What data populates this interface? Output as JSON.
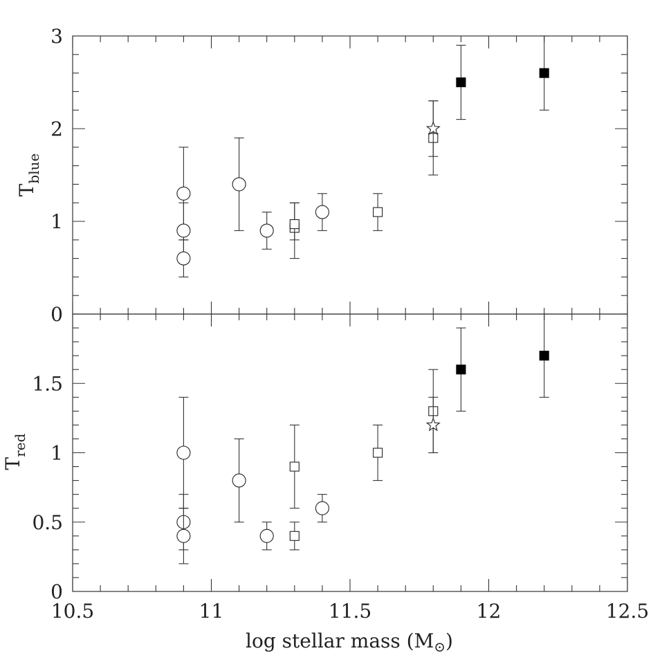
{
  "chart_data": [
    {
      "type": "scatter",
      "panel": "top",
      "ylabel_main": "T",
      "ylabel_sub": "blue",
      "ylim": [
        0,
        3
      ],
      "yticks": [
        "0",
        "1",
        "2",
        "3"
      ],
      "xlim": [
        10.5,
        12.5
      ],
      "series": [
        {
          "marker": "open-circle",
          "points": [
            {
              "x": 10.9,
              "y": 1.3,
              "lo": 0.8,
              "hi": 1.8
            },
            {
              "x": 10.9,
              "y": 0.9,
              "lo": 0.6,
              "hi": 1.2
            },
            {
              "x": 10.9,
              "y": 0.6,
              "lo": 0.4,
              "hi": 0.8
            },
            {
              "x": 11.1,
              "y": 1.4,
              "lo": 0.9,
              "hi": 1.9
            },
            {
              "x": 11.2,
              "y": 0.9,
              "lo": 0.7,
              "hi": 1.1
            },
            {
              "x": 11.4,
              "y": 1.1,
              "lo": 0.9,
              "hi": 1.3
            }
          ]
        },
        {
          "marker": "open-square",
          "points": [
            {
              "x": 11.3,
              "y": 0.93,
              "lo": 0.6,
              "hi": 1.2
            },
            {
              "x": 11.3,
              "y": 0.97,
              "lo": 0.8,
              "hi": 1.2
            },
            {
              "x": 11.6,
              "y": 1.1,
              "lo": 0.9,
              "hi": 1.3
            },
            {
              "x": 11.8,
              "y": 1.9,
              "lo": 1.5,
              "hi": 2.3
            }
          ]
        },
        {
          "marker": "open-star",
          "points": [
            {
              "x": 11.8,
              "y": 2.0,
              "lo": 1.7,
              "hi": 2.3
            }
          ]
        },
        {
          "marker": "filled-square",
          "points": [
            {
              "x": 11.9,
              "y": 2.5,
              "lo": 2.1,
              "hi": 2.9
            },
            {
              "x": 12.2,
              "y": 2.6,
              "lo": 2.2,
              "hi": 3.0
            }
          ]
        }
      ]
    },
    {
      "type": "scatter",
      "panel": "bottom",
      "ylabel_main": "T",
      "ylabel_sub": "red",
      "ylim": [
        0,
        2
      ],
      "yticks": [
        "0",
        "0.5",
        "1",
        "1.5"
      ],
      "xlim": [
        10.5,
        12.5
      ],
      "xticks": [
        "10.5",
        "11",
        "11.5",
        "12",
        "12.5"
      ],
      "xlabel_main": "log stellar mass (M",
      "xlabel_end": ")",
      "series": [
        {
          "marker": "open-circle",
          "points": [
            {
              "x": 10.9,
              "y": 1.0,
              "lo": 0.6,
              "hi": 1.4
            },
            {
              "x": 10.9,
              "y": 0.5,
              "lo": 0.3,
              "hi": 0.7
            },
            {
              "x": 10.9,
              "y": 0.4,
              "lo": 0.2,
              "hi": 0.6
            },
            {
              "x": 11.1,
              "y": 0.8,
              "lo": 0.5,
              "hi": 1.1
            },
            {
              "x": 11.2,
              "y": 0.4,
              "lo": 0.3,
              "hi": 0.5
            },
            {
              "x": 11.4,
              "y": 0.6,
              "lo": 0.5,
              "hi": 0.7
            }
          ]
        },
        {
          "marker": "open-square",
          "points": [
            {
              "x": 11.3,
              "y": 0.9,
              "lo": 0.6,
              "hi": 1.2
            },
            {
              "x": 11.3,
              "y": 0.4,
              "lo": 0.3,
              "hi": 0.5
            },
            {
              "x": 11.6,
              "y": 1.0,
              "lo": 0.8,
              "hi": 1.2
            },
            {
              "x": 11.8,
              "y": 1.3,
              "lo": 1.0,
              "hi": 1.6
            }
          ]
        },
        {
          "marker": "open-star",
          "points": [
            {
              "x": 11.8,
              "y": 1.2,
              "lo": 1.0,
              "hi": 1.4
            }
          ]
        },
        {
          "marker": "filled-square",
          "points": [
            {
              "x": 11.9,
              "y": 1.6,
              "lo": 1.3,
              "hi": 1.9
            },
            {
              "x": 12.2,
              "y": 1.7,
              "lo": 1.4,
              "hi": 2.0
            }
          ]
        }
      ]
    }
  ]
}
